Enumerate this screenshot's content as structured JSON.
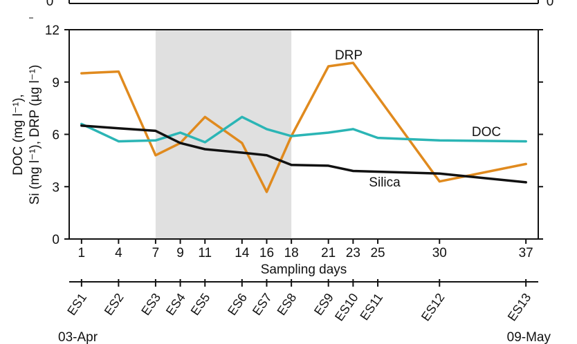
{
  "chart_data": {
    "type": "line",
    "xlabel": "Sampling days",
    "ylabel_lines": [
      "DOC (mg l⁻¹),",
      "Si (mg l⁻¹), DRP (µg l⁻¹)"
    ],
    "ylim": [
      0,
      12
    ],
    "y_ticks": [
      0,
      3,
      6,
      9,
      12
    ],
    "xlim": [
      0,
      38
    ],
    "x_ticks": [
      1,
      4,
      7,
      9,
      11,
      14,
      16,
      18,
      21,
      23,
      25,
      30,
      37
    ],
    "shaded_range": [
      7,
      18
    ],
    "series": [
      {
        "name": "DRP",
        "color": "#e08a1e",
        "x": [
          1,
          4,
          7,
          9,
          11,
          14,
          16,
          18,
          21,
          23,
          30,
          37
        ],
        "values": [
          9.5,
          9.6,
          4.8,
          5.5,
          7.0,
          5.5,
          2.7,
          5.9,
          9.9,
          10.1,
          3.3,
          4.3
        ]
      },
      {
        "name": "DOC",
        "color": "#2bb5b5",
        "x": [
          1,
          4,
          7,
          9,
          11,
          14,
          16,
          18,
          21,
          23,
          25,
          30,
          37
        ],
        "values": [
          6.6,
          5.6,
          5.65,
          6.1,
          5.55,
          7.0,
          6.3,
          5.9,
          6.1,
          6.3,
          5.8,
          5.65,
          5.6
        ]
      },
      {
        "name": "Silica",
        "color": "#111111",
        "x": [
          1,
          4,
          7,
          9,
          11,
          14,
          16,
          18,
          21,
          23,
          30,
          37
        ],
        "values": [
          6.5,
          6.35,
          6.2,
          5.5,
          5.15,
          4.95,
          4.8,
          4.25,
          4.2,
          3.9,
          3.75,
          3.25
        ]
      }
    ],
    "station_axis": {
      "stations": [
        {
          "label": "ES1",
          "day": 1
        },
        {
          "label": "ES2",
          "day": 4
        },
        {
          "label": "ES3",
          "day": 7
        },
        {
          "label": "ES4",
          "day": 9
        },
        {
          "label": "ES5",
          "day": 11
        },
        {
          "label": "ES6",
          "day": 14
        },
        {
          "label": "ES7",
          "day": 16
        },
        {
          "label": "ES8",
          "day": 18
        },
        {
          "label": "ES9",
          "day": 21
        },
        {
          "label": "ES10",
          "day": 23
        },
        {
          "label": "ES11",
          "day": 25
        },
        {
          "label": "ES12",
          "day": 30
        },
        {
          "label": "ES13",
          "day": 37
        }
      ],
      "start_date": "03-Apr",
      "end_date": "09-May"
    },
    "top_panel_fragment": {
      "left_tick": "0",
      "right_tick": "0"
    }
  }
}
